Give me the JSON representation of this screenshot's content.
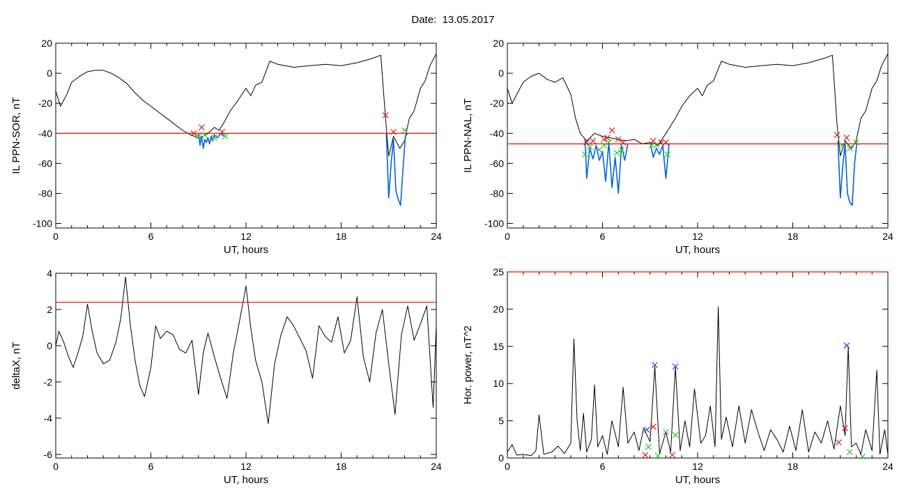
{
  "header": {
    "date_label": "Date:",
    "date_value": "13.05.2017"
  },
  "colors": {
    "trace": "#000000",
    "threshold": "#ff0000",
    "highlight": "#0064dc",
    "marker_red": "#dc1e1e",
    "marker_green": "#28c828",
    "marker_blue": "#1e46dc"
  },
  "chart_data": [
    {
      "id": "panel-il-sor",
      "type": "line",
      "title": "",
      "xlabel": "UT, hours",
      "ylabel": "IL PPN-SOR, nT",
      "xlim": [
        0,
        24
      ],
      "ylim": [
        -103,
        20
      ],
      "xticks": [
        0,
        6,
        12,
        18,
        24
      ],
      "yticks": [
        20,
        0,
        -20,
        -40,
        -60,
        -80,
        -100
      ],
      "threshold": -40,
      "series": [
        {
          "role": "trace",
          "x": [
            0,
            0.3,
            0.7,
            1.0,
            1.5,
            2.0,
            2.5,
            3.0,
            3.5,
            4.0,
            4.5,
            5.0,
            5.5,
            6.0,
            6.5,
            7.0,
            7.5,
            8.0,
            8.5,
            9.0,
            9.3,
            9.6,
            10.0,
            10.3,
            10.6,
            11.0,
            11.5,
            12.0,
            12.3,
            12.6,
            13.0,
            13.5,
            14.0,
            15.0,
            16.0,
            17.0,
            18.0,
            19.0,
            20.0,
            20.5,
            20.8,
            21.0,
            21.3,
            21.7,
            22.0,
            22.3,
            22.6,
            23.0,
            23.3,
            23.6,
            24.0
          ],
          "y": [
            -12,
            -22,
            -14,
            -6,
            -2,
            1,
            2,
            2,
            0,
            -3,
            -7,
            -13,
            -18,
            -22,
            -26,
            -30,
            -34,
            -38,
            -41,
            -43,
            -42,
            -40,
            -36,
            -38,
            -33,
            -25,
            -18,
            -10,
            -15,
            -8,
            -6,
            8,
            6,
            4,
            5,
            6,
            5,
            7,
            10,
            12,
            -30,
            -55,
            -42,
            -50,
            -45,
            -30,
            -25,
            -10,
            -5,
            5,
            13
          ]
        },
        {
          "role": "highlight",
          "x": [
            9.0,
            9.1,
            9.2,
            9.3,
            9.4,
            9.5,
            9.6,
            9.7,
            9.8,
            9.9,
            10.0,
            10.2,
            10.4,
            10.6
          ],
          "y": [
            -40,
            -48,
            -42,
            -50,
            -44,
            -46,
            -43,
            -47,
            -42,
            -45,
            -41,
            -43,
            -40,
            -42
          ]
        },
        {
          "role": "highlight",
          "x": [
            20.85,
            21.0,
            21.15,
            21.3,
            21.45,
            21.6,
            21.75,
            21.9,
            22.05,
            22.2
          ],
          "y": [
            -40,
            -83,
            -60,
            -44,
            -78,
            -84,
            -88,
            -64,
            -42,
            -40
          ]
        }
      ],
      "markers_red": {
        "x": [
          8.7,
          9.2,
          10.5,
          20.8,
          21.3
        ],
        "y": [
          -40,
          -36,
          -39,
          -28,
          -39
        ]
      },
      "markers_green": {
        "x": [
          9.0,
          9.4,
          10.0,
          10.7,
          22.0
        ],
        "y": [
          -42,
          -41,
          -43,
          -42,
          -38
        ]
      }
    },
    {
      "id": "panel-il-nal",
      "type": "line",
      "title": "",
      "xlabel": "UT, hours",
      "ylabel": "IL PPN-NAL, nT",
      "xlim": [
        0,
        24
      ],
      "ylim": [
        -103,
        20
      ],
      "xticks": [
        0,
        6,
        12,
        18,
        24
      ],
      "yticks": [
        20,
        0,
        -20,
        -40,
        -60,
        -80,
        -100
      ],
      "threshold": -47,
      "series": [
        {
          "role": "trace",
          "x": [
            0,
            0.3,
            0.7,
            1.0,
            1.5,
            2.0,
            2.5,
            3.0,
            3.5,
            4.0,
            4.3,
            4.6,
            5.0,
            5.5,
            6.0,
            6.5,
            7.0,
            7.5,
            8.0,
            8.5,
            9.0,
            9.5,
            10.0,
            10.3,
            10.6,
            11.0,
            11.5,
            12.0,
            12.3,
            12.6,
            13.0,
            13.5,
            14.0,
            15.0,
            16.0,
            17.0,
            18.0,
            19.0,
            20.0,
            20.5,
            20.8,
            21.0,
            21.3,
            21.7,
            22.0,
            22.3,
            22.6,
            23.0,
            23.3,
            23.6,
            24.0
          ],
          "y": [
            -10,
            -20,
            -12,
            -6,
            -2,
            0,
            -4,
            -6,
            -3,
            -14,
            -30,
            -40,
            -45,
            -40,
            -42,
            -43,
            -44,
            -45,
            -44,
            -47,
            -46,
            -48,
            -40,
            -35,
            -30,
            -22,
            -15,
            -10,
            -15,
            -8,
            -5,
            8,
            6,
            4,
            5,
            6,
            5,
            7,
            10,
            12,
            -35,
            -55,
            -45,
            -50,
            -45,
            -30,
            -25,
            -10,
            -5,
            5,
            13
          ]
        },
        {
          "role": "highlight",
          "x": [
            4.9,
            5.0,
            5.2,
            5.4,
            5.6,
            5.8,
            6.0,
            6.2,
            6.4,
            6.6,
            6.8,
            7.0,
            7.2,
            7.4,
            7.6
          ],
          "y": [
            -45,
            -70,
            -50,
            -57,
            -48,
            -58,
            -52,
            -72,
            -46,
            -76,
            -56,
            -80,
            -48,
            -58,
            -47
          ]
        },
        {
          "role": "highlight",
          "x": [
            9.0,
            9.2,
            9.4,
            9.6,
            9.8,
            10.0,
            10.2
          ],
          "y": [
            -46,
            -56,
            -50,
            -54,
            -48,
            -70,
            -47
          ]
        },
        {
          "role": "highlight",
          "x": [
            20.85,
            21.0,
            21.15,
            21.3,
            21.45,
            21.6,
            21.75,
            21.9,
            22.05
          ],
          "y": [
            -45,
            -83,
            -62,
            -47,
            -80,
            -86,
            -88,
            -60,
            -46
          ]
        }
      ],
      "markers_red": {
        "x": [
          5.0,
          5.4,
          6.1,
          6.3,
          6.6,
          7.0,
          7.3,
          9.2,
          9.7,
          10.0,
          20.8,
          21.4
        ],
        "y": [
          -46,
          -45,
          -44,
          -43,
          -38,
          -44,
          -46,
          -45,
          -46,
          -46,
          -41,
          -43
        ]
      },
      "markers_green": {
        "x": [
          4.9,
          5.2,
          5.8,
          6.1,
          6.4,
          6.9,
          7.2,
          9.1,
          9.4,
          10.1,
          21.1,
          21.6,
          22.0
        ],
        "y": [
          -54,
          -49,
          -51,
          -48,
          -46,
          -53,
          -51,
          -48,
          -48,
          -54,
          -48,
          -50,
          -46
        ]
      }
    },
    {
      "id": "panel-deltax",
      "type": "line",
      "title": "",
      "xlabel": "UT, hours",
      "ylabel": "deltaX, nT",
      "xlim": [
        0,
        24
      ],
      "ylim": [
        -6.2,
        4
      ],
      "xticks": [
        0,
        6,
        12,
        18,
        24
      ],
      "yticks": [
        4,
        2,
        0,
        -2,
        -4,
        -6
      ],
      "threshold": 2.4,
      "series": [
        {
          "role": "trace",
          "x": [
            0,
            0.2,
            0.5,
            0.8,
            1.1,
            1.4,
            1.7,
            2.0,
            2.3,
            2.6,
            3.0,
            3.4,
            3.8,
            4.1,
            4.4,
            4.7,
            5.0,
            5.3,
            5.6,
            6.0,
            6.3,
            6.6,
            7.0,
            7.4,
            7.8,
            8.2,
            8.6,
            9.0,
            9.3,
            9.6,
            10.0,
            10.4,
            10.8,
            11.2,
            11.6,
            12.0,
            12.3,
            12.6,
            13.0,
            13.4,
            13.8,
            14.2,
            14.6,
            15.0,
            15.4,
            15.8,
            16.2,
            16.6,
            17.0,
            17.4,
            17.8,
            18.2,
            18.6,
            19.0,
            19.4,
            19.8,
            20.2,
            20.6,
            21.0,
            21.4,
            21.8,
            22.2,
            22.6,
            23.0,
            23.4,
            23.8,
            24.0
          ],
          "y": [
            0,
            0.8,
            0.2,
            -0.6,
            -1.2,
            -0.4,
            0.5,
            2.3,
            0.8,
            -0.4,
            -1,
            -0.8,
            0.2,
            1.5,
            3.8,
            1.2,
            -0.8,
            -2.2,
            -2.8,
            -1.2,
            1.1,
            0.4,
            0.8,
            0.6,
            -0.2,
            -0.4,
            0.3,
            -2.7,
            -0.4,
            0.7,
            -0.6,
            -1.8,
            -2.9,
            -0.4,
            1.4,
            3.3,
            1.0,
            -0.8,
            -2.0,
            -4.3,
            -1.0,
            0.6,
            1.6,
            1.1,
            0.4,
            -0.3,
            -1.8,
            1.1,
            0.5,
            0.2,
            1.6,
            -0.4,
            0.3,
            2.7,
            -0.6,
            -2.0,
            0.7,
            2.0,
            -1.0,
            -3.8,
            0.6,
            2.2,
            0.3,
            1.2,
            2.2,
            -3.4,
            1.1
          ]
        }
      ]
    },
    {
      "id": "panel-hor-power",
      "type": "line",
      "title": "",
      "xlabel": "UT, hours",
      "ylabel": "Hor. power, nT^2",
      "xlim": [
        0,
        24
      ],
      "ylim": [
        0,
        25
      ],
      "xticks": [
        0,
        6,
        12,
        18,
        24
      ],
      "yticks": [
        25,
        20,
        15,
        10,
        5,
        0
      ],
      "threshold": 25,
      "series": [
        {
          "role": "trace",
          "x": [
            0,
            0.3,
            0.6,
            1.0,
            1.5,
            1.8,
            2.0,
            2.3,
            2.8,
            3.2,
            3.6,
            4.0,
            4.2,
            4.4,
            4.6,
            4.8,
            5.0,
            5.3,
            5.5,
            5.7,
            6.0,
            6.3,
            6.6,
            7.0,
            7.3,
            7.6,
            8.0,
            8.3,
            8.6,
            9.0,
            9.3,
            9.6,
            10.0,
            10.3,
            10.6,
            10.9,
            11.2,
            11.5,
            11.8,
            12.2,
            12.5,
            12.8,
            13.1,
            13.3,
            13.5,
            13.8,
            14.2,
            14.6,
            15.0,
            15.4,
            15.8,
            16.2,
            16.6,
            17.0,
            17.4,
            17.8,
            18.2,
            18.6,
            19.0,
            19.4,
            19.8,
            20.2,
            20.6,
            21.0,
            21.3,
            21.5,
            21.7,
            22.0,
            22.3,
            22.6,
            23.0,
            23.3,
            23.5,
            23.8,
            24.0
          ],
          "y": [
            0.8,
            1.8,
            0.4,
            0.5,
            0.3,
            1.0,
            5.8,
            0.5,
            0.8,
            1.6,
            0.6,
            2.0,
            16.0,
            5.0,
            1.0,
            6.0,
            0.8,
            2.5,
            9.8,
            1.5,
            3.0,
            0.5,
            5.0,
            1.5,
            9.5,
            2.0,
            3.5,
            1.0,
            4.0,
            2.2,
            12.3,
            0.6,
            3.5,
            0.8,
            12.2,
            1.0,
            5.0,
            1.5,
            9.3,
            2.0,
            3.0,
            7.0,
            1.5,
            20.3,
            2.5,
            5.5,
            1.5,
            7.0,
            2.0,
            6.5,
            3.5,
            1.0,
            3.8,
            2.5,
            0.8,
            4.3,
            1.0,
            6.5,
            0.8,
            3.5,
            2.0,
            5.0,
            1.2,
            7.0,
            3.0,
            15.0,
            1.5,
            2.0,
            0.5,
            3.8,
            1.0,
            11.8,
            0.5,
            3.8,
            0.5
          ]
        }
      ],
      "markers_red": {
        "x": [
          8.7,
          9.2,
          10.4,
          20.9,
          21.3
        ],
        "y": [
          0.4,
          4.2,
          0.4,
          2.1,
          4.0
        ]
      },
      "markers_green": {
        "x": [
          8.9,
          9.5,
          10.0,
          10.6,
          21.6,
          22.4
        ],
        "y": [
          1.5,
          0.3,
          3.5,
          3.1,
          0.8,
          0.2
        ]
      },
      "markers_blue": {
        "x": [
          8.8,
          9.3,
          10.6,
          21.4
        ],
        "y": [
          3.8,
          12.5,
          12.3,
          15.1
        ]
      }
    }
  ]
}
